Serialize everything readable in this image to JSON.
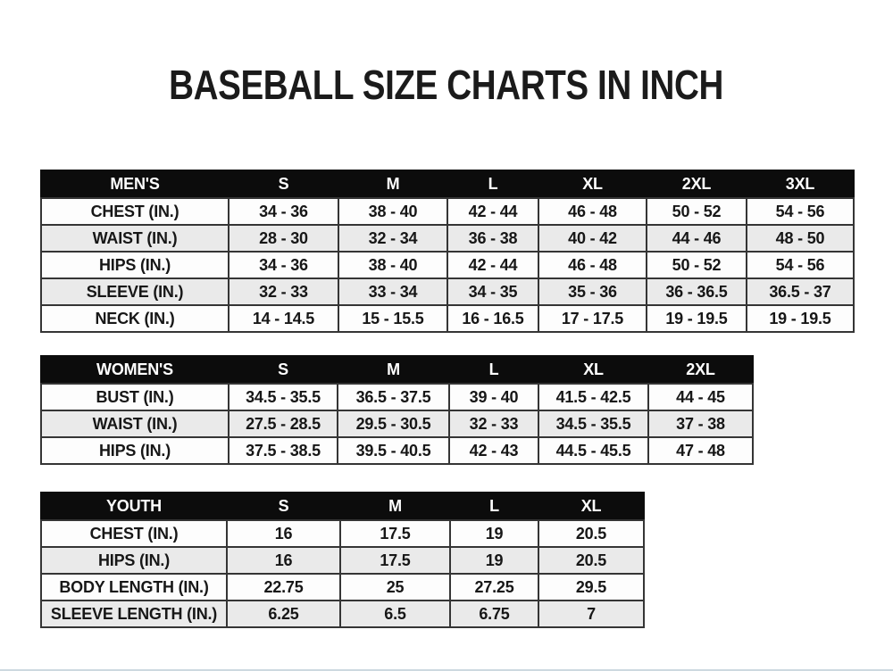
{
  "page": {
    "title": "BASEBALL SIZE CHARTS IN INCH"
  },
  "colors": {
    "header_bg": "#0c0c0c",
    "header_text": "#ffffff",
    "row_alt_bg": "#eaeaea",
    "row_bg": "#fdfdfd",
    "border": "#353535",
    "text": "#171717"
  },
  "tables": [
    {
      "id": "mens",
      "title": "MEN'S",
      "header": [
        "MEN'S",
        "S",
        "M",
        "L",
        "XL",
        "2XL",
        "3XL"
      ],
      "rows": [
        [
          "CHEST (IN.)",
          "34 - 36",
          "38 - 40",
          "42 - 44",
          "46 - 48",
          "50 - 52",
          "54 - 56"
        ],
        [
          "WAIST (IN.)",
          "28 - 30",
          "32 - 34",
          "36 - 38",
          "40 - 42",
          "44 - 46",
          "48 - 50"
        ],
        [
          "HIPS (IN.)",
          "34 - 36",
          "38 - 40",
          "42 - 44",
          "46 - 48",
          "50 - 52",
          "54 - 56"
        ],
        [
          "SLEEVE (IN.)",
          "32 - 33",
          "33 - 34",
          "34 - 35",
          "35 - 36",
          "36 - 36.5",
          "36.5 - 37"
        ],
        [
          "NECK (IN.)",
          "14 - 14.5",
          "15 - 15.5",
          "16 - 16.5",
          "17 - 17.5",
          "19 - 19.5",
          "19 - 19.5"
        ]
      ]
    },
    {
      "id": "womens",
      "title": "WOMEN'S",
      "header": [
        "WOMEN'S",
        "S",
        "M",
        "L",
        "XL",
        "2XL"
      ],
      "rows": [
        [
          "BUST (IN.)",
          "34.5 - 35.5",
          "36.5 - 37.5",
          "39 - 40",
          "41.5 - 42.5",
          "44 - 45"
        ],
        [
          "WAIST (IN.)",
          "27.5 - 28.5",
          "29.5 - 30.5",
          "32 - 33",
          "34.5 - 35.5",
          "37 - 38"
        ],
        [
          "HIPS (IN.)",
          "37.5 - 38.5",
          "39.5 - 40.5",
          "42 - 43",
          "44.5 - 45.5",
          "47 - 48"
        ]
      ]
    },
    {
      "id": "youth",
      "title": "YOUTH",
      "header": [
        "YOUTH",
        "S",
        "M",
        "L",
        "XL"
      ],
      "rows": [
        [
          "CHEST (IN.)",
          "16",
          "17.5",
          "19",
          "20.5"
        ],
        [
          "HIPS (IN.)",
          "16",
          "17.5",
          "19",
          "20.5"
        ],
        [
          "BODY LENGTH (IN.)",
          "22.75",
          "25",
          "27.25",
          "29.5"
        ],
        [
          "SLEEVE LENGTH (IN.)",
          "6.25",
          "6.5",
          "6.75",
          "7"
        ]
      ]
    }
  ]
}
